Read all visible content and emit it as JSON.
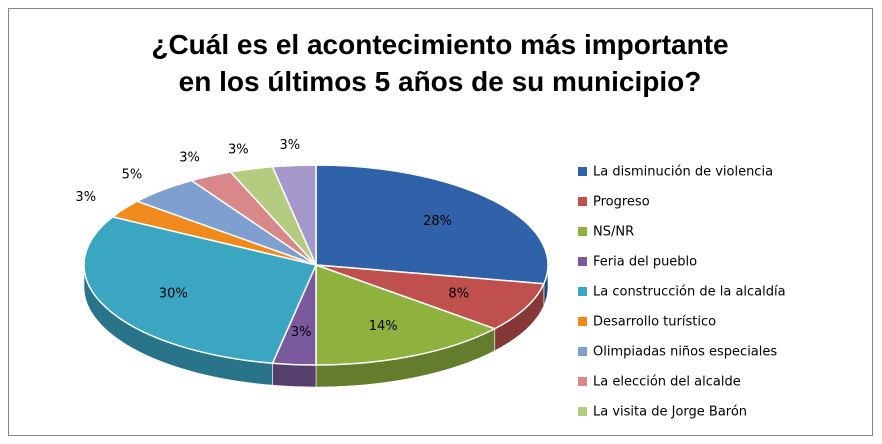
{
  "chart_data": {
    "type": "pie",
    "title": "¿Cuál es el acontecimiento más importante en los últimos 5 años de su municipio?",
    "categories": [
      "La disminución de violencia",
      "Progreso",
      "NS/NR",
      "Feria del pueblo",
      "La construcción de la alcaldía",
      "Desarrollo turístico",
      "Olimpiadas niños especiales",
      "La elección del alcalde",
      "La visita de Jorge Barón",
      null
    ],
    "values": [
      28,
      8,
      14,
      3,
      30,
      3,
      5,
      3,
      3,
      3
    ],
    "value_labels": [
      "28%",
      "8%",
      "14%",
      "3%",
      "30%",
      "3%",
      "5%",
      "3%",
      "3%",
      "3%"
    ],
    "colors": [
      "#2f62a8",
      "#c0504d",
      "#8fb23f",
      "#7a5a9c",
      "#3aa6c2",
      "#f08a1c",
      "#7f9fd0",
      "#d9888a",
      "#b3cc7f",
      "#a798cb"
    ],
    "legend": "right"
  }
}
